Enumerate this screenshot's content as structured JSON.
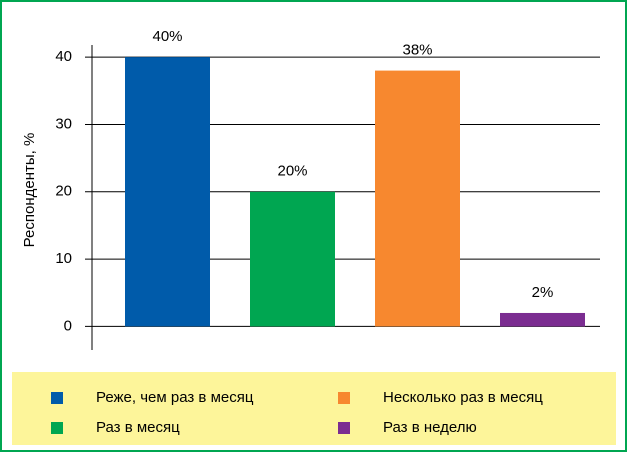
{
  "chart_data": {
    "type": "bar",
    "categories": [
      "Реже, чем раз в месяц",
      "Раз в месяц",
      "Несколько раз в месяц",
      "Раз в неделю"
    ],
    "values": [
      40,
      20,
      38,
      2
    ],
    "value_labels": [
      "40%",
      "20%",
      "38%",
      "2%"
    ],
    "colors": [
      "#005baa",
      "#00a651",
      "#f7882f",
      "#7b2d91"
    ],
    "ylabel": "Респонденты, %",
    "ylim": [
      -3.5,
      41.8
    ],
    "yticks": [
      0,
      10,
      20,
      30,
      40
    ],
    "grid": true,
    "legend": "bottom"
  }
}
